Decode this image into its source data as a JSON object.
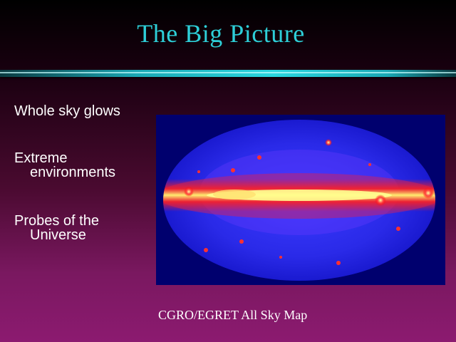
{
  "slide": {
    "title": "The Big Picture",
    "bullets": [
      {
        "line1": "Whole sky glows",
        "line2": ""
      },
      {
        "line1": "Extreme",
        "line2": "environments"
      },
      {
        "line1": "Probes of the",
        "line2": "Universe"
      }
    ],
    "image": {
      "icon": "all-sky-map-image",
      "caption": "CGRO/EGRET All Sky Map"
    }
  },
  "colors": {
    "title": "#2ecfd8",
    "text": "#ffffff",
    "map_background": "#00006e",
    "map_hot": "#ffff66"
  }
}
